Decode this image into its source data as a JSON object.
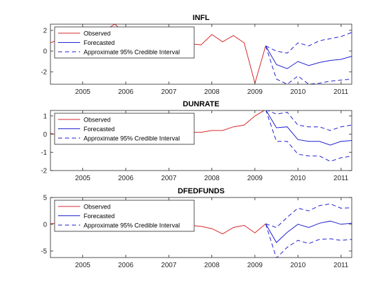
{
  "chart_data": [
    {
      "type": "line",
      "title": "INFL",
      "xlim": [
        2004.25,
        2011.25
      ],
      "ylim": [
        -3.2,
        2.6
      ],
      "x_ticks": [
        2005,
        2006,
        2007,
        2008,
        2009,
        2010,
        2011
      ],
      "x_tick_labels": [
        "2005",
        "2006",
        "2007",
        "2008",
        "2009",
        "2010",
        "2011"
      ],
      "y_ticks": [
        2,
        0,
        -2
      ],
      "y_tick_labels": [
        "2",
        "0",
        "-2"
      ],
      "legend_position": "top-left",
      "series": [
        {
          "name": "Observed",
          "color": "#d62728",
          "style": "solid",
          "x": [
            2004.25,
            2004.5,
            2004.75,
            2005.0,
            2005.25,
            2005.5,
            2005.75,
            2006.0,
            2006.25,
            2006.5,
            2006.75,
            2007.0,
            2007.25,
            2007.5,
            2007.75,
            2008.0,
            2008.25,
            2008.5,
            2008.75,
            2009.0,
            2009.25
          ],
          "y": [
            0.8,
            1.2,
            1.0,
            1.5,
            1.6,
            2.0,
            2.6,
            1.6,
            1.4,
            1.2,
            1.0,
            0.9,
            0.8,
            0.7,
            0.6,
            1.6,
            0.9,
            1.5,
            0.8,
            -3.1,
            0.5
          ]
        },
        {
          "name": "Forecasted",
          "color": "#1f1fd0",
          "style": "solid",
          "x": [
            2009.25,
            2009.5,
            2009.75,
            2010.0,
            2010.25,
            2010.5,
            2010.75,
            2011.0,
            2011.25
          ],
          "y": [
            0.5,
            -1.3,
            -1.7,
            -1.0,
            -1.4,
            -1.1,
            -0.9,
            -0.8,
            -0.5
          ]
        },
        {
          "name": "Approximate 95% Credible Interval",
          "color": "#1f1fd0",
          "style": "dashed",
          "x": [
            2009.25,
            2009.5,
            2009.75,
            2010.0,
            2010.25,
            2010.5,
            2010.75,
            2011.0,
            2011.25
          ],
          "y": [
            0.5,
            0.0,
            -0.2,
            0.8,
            0.5,
            1.0,
            1.2,
            1.4,
            1.8
          ]
        },
        {
          "name": "",
          "color": "#1f1fd0",
          "style": "dashed",
          "x": [
            2009.25,
            2009.5,
            2009.75,
            2010.0,
            2010.25,
            2010.5,
            2010.75,
            2011.0,
            2011.25
          ],
          "y": [
            0.5,
            -2.7,
            -3.2,
            -2.4,
            -3.2,
            -3.1,
            -2.9,
            -2.8,
            -2.7
          ]
        }
      ],
      "legend": [
        "Observed",
        "Forecasted",
        "Approximate 95% Credible Interval"
      ]
    },
    {
      "type": "line",
      "title": "DUNRATE",
      "xlim": [
        2004.25,
        2011.25
      ],
      "ylim": [
        -2,
        1.3
      ],
      "x_ticks": [
        2005,
        2006,
        2007,
        2008,
        2009,
        2010,
        2011
      ],
      "x_tick_labels": [
        "2005",
        "2006",
        "2007",
        "2008",
        "2009",
        "2010",
        "2011"
      ],
      "y_ticks": [
        1,
        0,
        -1,
        -2
      ],
      "y_tick_labels": [
        "1",
        "0",
        "-1",
        "-2"
      ],
      "legend_position": "top-left",
      "series": [
        {
          "name": "Observed",
          "color": "#d62728",
          "style": "solid",
          "x": [
            2004.25,
            2004.5,
            2004.75,
            2005.0,
            2005.25,
            2005.5,
            2005.75,
            2006.0,
            2006.25,
            2006.5,
            2006.75,
            2007.0,
            2007.25,
            2007.5,
            2007.75,
            2008.0,
            2008.25,
            2008.5,
            2008.75,
            2009.0,
            2009.25
          ],
          "y": [
            0.05,
            -0.1,
            0.0,
            -0.1,
            -0.1,
            -0.1,
            -0.1,
            -0.2,
            -0.1,
            -0.1,
            -0.1,
            0.0,
            0.1,
            0.1,
            0.1,
            0.2,
            0.2,
            0.4,
            0.5,
            1.0,
            1.35
          ]
        },
        {
          "name": "Forecasted",
          "color": "#1f1fd0",
          "style": "solid",
          "x": [
            2009.25,
            2009.5,
            2009.75,
            2010.0,
            2010.25,
            2010.5,
            2010.75,
            2011.0,
            2011.25
          ],
          "y": [
            1.35,
            0.35,
            0.4,
            -0.3,
            -0.4,
            -0.4,
            -0.6,
            -0.4,
            -0.35
          ]
        },
        {
          "name": "Approximate 95% Credible Interval",
          "color": "#1f1fd0",
          "style": "dashed",
          "x": [
            2009.25,
            2009.5,
            2009.75,
            2010.0,
            2010.25,
            2010.5,
            2010.75,
            2011.0,
            2011.25
          ],
          "y": [
            1.35,
            1.1,
            1.2,
            0.5,
            0.4,
            0.4,
            0.2,
            0.4,
            0.5
          ]
        },
        {
          "name": "",
          "color": "#1f1fd0",
          "style": "dashed",
          "x": [
            2009.25,
            2009.5,
            2009.75,
            2010.0,
            2010.25,
            2010.5,
            2010.75,
            2011.0,
            2011.25
          ],
          "y": [
            1.35,
            -0.4,
            -0.4,
            -1.1,
            -1.2,
            -1.2,
            -1.5,
            -1.3,
            -1.2
          ]
        }
      ],
      "legend": [
        "Observed",
        "Forecasted",
        "Approximate 95% Credible Interval"
      ]
    },
    {
      "type": "line",
      "title": "DFEDFUNDS",
      "xlim": [
        2004.25,
        2011.25
      ],
      "ylim": [
        -6.2,
        5
      ],
      "x_ticks": [
        2005,
        2006,
        2007,
        2008,
        2009,
        2010,
        2011
      ],
      "x_tick_labels": [
        "2005",
        "2006",
        "2007",
        "2008",
        "2009",
        "2010",
        "2011"
      ],
      "y_ticks": [
        5,
        0,
        -5
      ],
      "y_tick_labels": [
        "5",
        "0",
        "-5"
      ],
      "legend_position": "top-left",
      "series": [
        {
          "name": "Observed",
          "color": "#d62728",
          "style": "solid",
          "x": [
            2004.25,
            2004.5,
            2004.75,
            2005.0,
            2005.25,
            2005.5,
            2005.75,
            2006.0,
            2006.25,
            2006.5,
            2006.75,
            2007.0,
            2007.25,
            2007.5,
            2007.75,
            2008.0,
            2008.25,
            2008.5,
            2008.75,
            2009.0,
            2009.25
          ],
          "y": [
            0.1,
            0.3,
            0.4,
            0.5,
            0.5,
            0.5,
            0.4,
            0.4,
            0.3,
            0.2,
            0.0,
            0.0,
            0.0,
            -0.2,
            -0.4,
            -0.8,
            -1.8,
            -0.6,
            -0.2,
            -1.6,
            0.1
          ]
        },
        {
          "name": "Forecasted",
          "color": "#1f1fd0",
          "style": "solid",
          "x": [
            2009.25,
            2009.5,
            2009.75,
            2010.0,
            2010.25,
            2010.5,
            2010.75,
            2011.0,
            2011.25
          ],
          "y": [
            0.1,
            -3.4,
            -1.5,
            0.0,
            -0.6,
            0.2,
            0.6,
            0.0,
            0.2
          ]
        },
        {
          "name": "Approximate 95% Credible Interval",
          "color": "#1f1fd0",
          "style": "dashed",
          "x": [
            2009.25,
            2009.5,
            2009.75,
            2010.0,
            2010.25,
            2010.5,
            2010.75,
            2011.0,
            2011.25
          ],
          "y": [
            0.1,
            -0.6,
            1.3,
            3.0,
            2.5,
            3.5,
            3.8,
            3.0,
            3.1
          ]
        },
        {
          "name": "",
          "color": "#1f1fd0",
          "style": "dashed",
          "x": [
            2009.25,
            2009.5,
            2009.75,
            2010.0,
            2010.25,
            2010.5,
            2010.75,
            2011.0,
            2011.25
          ],
          "y": [
            0.1,
            -6.3,
            -4.3,
            -3.0,
            -3.6,
            -2.8,
            -2.7,
            -3.0,
            -2.8
          ]
        }
      ],
      "legend": [
        "Observed",
        "Forecasted",
        "Approximate 95% Credible Interval"
      ]
    }
  ]
}
